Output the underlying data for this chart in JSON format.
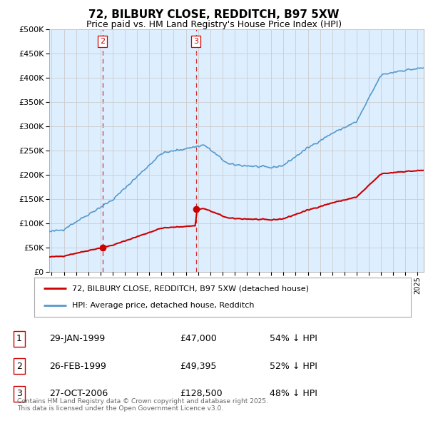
{
  "title": "72, BILBURY CLOSE, REDDITCH, B97 5XW",
  "subtitle": "Price paid vs. HM Land Registry's House Price Index (HPI)",
  "legend_line1": "72, BILBURY CLOSE, REDDITCH, B97 5XW (detached house)",
  "legend_line2": "HPI: Average price, detached house, Redditch",
  "table": [
    {
      "num": "1",
      "date": "29-JAN-1999",
      "price": "£47,000",
      "hpi": "54% ↓ HPI"
    },
    {
      "num": "2",
      "date": "26-FEB-1999",
      "price": "£49,395",
      "hpi": "52% ↓ HPI"
    },
    {
      "num": "3",
      "date": "27-OCT-2006",
      "price": "£128,500",
      "hpi": "48% ↓ HPI"
    }
  ],
  "footer": "Contains HM Land Registry data © Crown copyright and database right 2025.\nThis data is licensed under the Open Government Licence v3.0.",
  "sale1_year": 1999.08,
  "sale1_price": 47000,
  "sale2_year": 1999.16,
  "sale2_price": 49395,
  "sale3_year": 2006.82,
  "sale3_price": 128500,
  "red_color": "#cc0000",
  "blue_color": "#5599cc",
  "blue_fill": "#ddeeff",
  "background_color": "#ffffff",
  "grid_color": "#cccccc",
  "ylim_max": 500000,
  "xlim_start": 1994.8,
  "xlim_end": 2025.5,
  "hpi_seed": 42
}
